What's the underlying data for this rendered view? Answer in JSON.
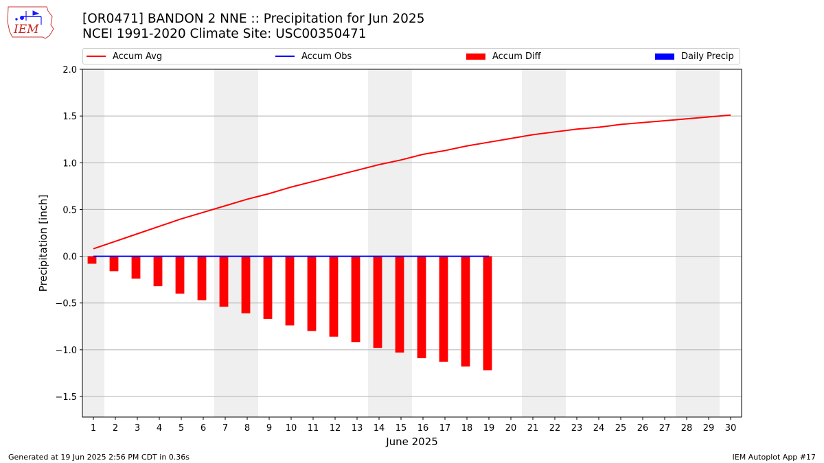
{
  "logo": {
    "text": "IEM"
  },
  "header": {
    "title_line1": "[OR0471] BANDON 2 NNE :: Precipitation for Jun 2025",
    "title_line2": "NCEI 1991-2020 Climate Site: USC00350471"
  },
  "legend": {
    "items": [
      {
        "label": "Accum Avg",
        "kind": "line",
        "color": "#ff0000"
      },
      {
        "label": "Accum Obs",
        "kind": "line",
        "color": "#0000ff"
      },
      {
        "label": "Accum Diff",
        "kind": "box",
        "color": "#ff0000"
      },
      {
        "label": "Daily Precip",
        "kind": "box",
        "color": "#0000ff"
      }
    ]
  },
  "chart_data": {
    "type": "bar",
    "xlabel": "June 2025",
    "ylabel": "Precipitation [inch]",
    "ylim": [
      -1.72,
      2.0
    ],
    "xlim": [
      0.5,
      30.5
    ],
    "x_ticks": [
      1,
      2,
      3,
      4,
      5,
      6,
      7,
      8,
      9,
      10,
      11,
      12,
      13,
      14,
      15,
      16,
      17,
      18,
      19,
      20,
      21,
      22,
      23,
      24,
      25,
      26,
      27,
      28,
      29,
      30
    ],
    "y_ticks": [
      -1.5,
      -1.0,
      -0.5,
      0.0,
      0.5,
      1.0,
      1.5,
      2.0
    ],
    "y_tick_labels": [
      "−1.5",
      "−1.0",
      "−0.5",
      "0.0",
      "0.5",
      "1.0",
      "1.5",
      "2.0"
    ],
    "grid": "horizontal",
    "weekend_shading": [
      [
        0.5,
        1.5
      ],
      [
        6.5,
        8.5
      ],
      [
        13.5,
        15.5
      ],
      [
        20.5,
        22.5
      ],
      [
        27.5,
        29.5
      ]
    ],
    "series": [
      {
        "name": "Accum Avg",
        "type": "line",
        "color": "#ff0000",
        "x": [
          1,
          2,
          3,
          4,
          5,
          6,
          7,
          8,
          9,
          10,
          11,
          12,
          13,
          14,
          15,
          16,
          17,
          18,
          19,
          20,
          21,
          22,
          23,
          24,
          25,
          26,
          27,
          28,
          29,
          30
        ],
        "values": [
          0.08,
          0.16,
          0.24,
          0.32,
          0.4,
          0.47,
          0.54,
          0.61,
          0.67,
          0.74,
          0.8,
          0.86,
          0.92,
          0.98,
          1.03,
          1.09,
          1.13,
          1.18,
          1.22,
          1.26,
          1.3,
          1.33,
          1.36,
          1.38,
          1.41,
          1.43,
          1.45,
          1.47,
          1.49,
          1.51
        ]
      },
      {
        "name": "Accum Obs",
        "type": "line",
        "color": "#0000ff",
        "x": [
          1,
          2,
          3,
          4,
          5,
          6,
          7,
          8,
          9,
          10,
          11,
          12,
          13,
          14,
          15,
          16,
          17,
          18,
          19
        ],
        "values": [
          0,
          0,
          0,
          0,
          0,
          0,
          0,
          0,
          0,
          0,
          0,
          0,
          0,
          0,
          0,
          0,
          0,
          0,
          0
        ]
      },
      {
        "name": "Accum Diff",
        "type": "bar",
        "color": "#ff0000",
        "x": [
          1,
          2,
          3,
          4,
          5,
          6,
          7,
          8,
          9,
          10,
          11,
          12,
          13,
          14,
          15,
          16,
          17,
          18,
          19
        ],
        "values": [
          -0.08,
          -0.16,
          -0.24,
          -0.32,
          -0.4,
          -0.47,
          -0.54,
          -0.61,
          -0.67,
          -0.74,
          -0.8,
          -0.86,
          -0.92,
          -0.98,
          -1.03,
          -1.09,
          -1.13,
          -1.18,
          -1.22
        ]
      },
      {
        "name": "Daily Precip",
        "type": "bar",
        "color": "#0000ff",
        "x": [
          1,
          2,
          3,
          4,
          5,
          6,
          7,
          8,
          9,
          10,
          11,
          12,
          13,
          14,
          15,
          16,
          17,
          18,
          19
        ],
        "values": [
          0,
          0,
          0,
          0,
          0,
          0,
          0,
          0,
          0,
          0,
          0,
          0,
          0,
          0,
          0,
          0,
          0,
          0,
          0
        ]
      }
    ]
  },
  "footer": {
    "left": "Generated at 19 Jun 2025 2:56 PM CDT in 0.36s",
    "right": "IEM Autoplot App #17"
  }
}
